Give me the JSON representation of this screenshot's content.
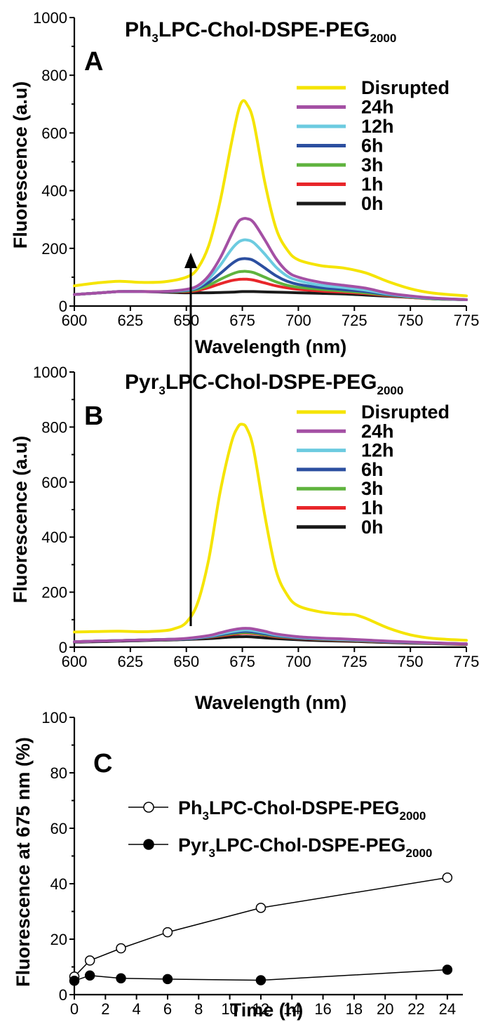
{
  "chart_data": [
    {
      "panel": "A",
      "type": "line",
      "title": "Ph3LPC-Chol-DSPE-PEG2000",
      "xlabel": "Wavelength (nm)",
      "ylabel": "Fluorescence (a.u)",
      "xlim": [
        600,
        775
      ],
      "ylim": [
        0,
        1000
      ],
      "xticks": [
        600,
        625,
        650,
        675,
        700,
        725,
        750,
        775
      ],
      "yticks": [
        0,
        200,
        400,
        600,
        800,
        1000
      ],
      "legend_position": "right",
      "series": [
        {
          "name": "Disrupted",
          "color": "#f5e400",
          "x": [
            600,
            610,
            620,
            630,
            640,
            650,
            655,
            660,
            665,
            670,
            673,
            675,
            677,
            680,
            685,
            690,
            695,
            700,
            710,
            720,
            730,
            740,
            750,
            760,
            775
          ],
          "y": [
            70,
            80,
            86,
            82,
            84,
            100,
            130,
            210,
            360,
            560,
            670,
            710,
            700,
            640,
            430,
            270,
            195,
            160,
            140,
            132,
            115,
            85,
            60,
            45,
            35
          ]
        },
        {
          "name": "24h",
          "color": "#a450a4",
          "x": [
            600,
            610,
            620,
            630,
            640,
            650,
            655,
            660,
            665,
            670,
            673,
            675,
            677,
            680,
            685,
            690,
            695,
            700,
            710,
            720,
            730,
            740,
            750,
            760,
            775
          ],
          "y": [
            40,
            45,
            50,
            50,
            50,
            58,
            70,
            105,
            165,
            245,
            290,
            302,
            303,
            290,
            230,
            165,
            120,
            100,
            82,
            72,
            62,
            45,
            35,
            28,
            22
          ]
        },
        {
          "name": "12h",
          "color": "#6ccbe0",
          "x": [
            600,
            610,
            620,
            630,
            640,
            650,
            655,
            660,
            665,
            670,
            673,
            675,
            677,
            680,
            685,
            690,
            695,
            700,
            710,
            720,
            730,
            740,
            750,
            760,
            775
          ],
          "y": [
            40,
            45,
            50,
            50,
            50,
            56,
            66,
            95,
            140,
            195,
            220,
            228,
            229,
            220,
            180,
            135,
            104,
            88,
            72,
            64,
            55,
            42,
            33,
            27,
            22
          ]
        },
        {
          "name": "6h",
          "color": "#2c4fa0",
          "x": [
            600,
            610,
            620,
            630,
            640,
            650,
            655,
            660,
            665,
            670,
            673,
            675,
            677,
            680,
            685,
            690,
            695,
            700,
            710,
            720,
            730,
            740,
            750,
            760,
            775
          ],
          "y": [
            40,
            45,
            50,
            50,
            50,
            54,
            62,
            82,
            112,
            145,
            160,
            164,
            164,
            158,
            132,
            105,
            86,
            75,
            64,
            57,
            50,
            40,
            32,
            26,
            22
          ]
        },
        {
          "name": "3h",
          "color": "#5fb33e",
          "x": [
            600,
            610,
            620,
            630,
            640,
            650,
            655,
            660,
            665,
            670,
            673,
            675,
            677,
            680,
            685,
            690,
            695,
            700,
            710,
            720,
            730,
            740,
            750,
            760,
            775
          ],
          "y": [
            40,
            45,
            50,
            50,
            50,
            52,
            58,
            72,
            92,
            110,
            118,
            120,
            120,
            116,
            100,
            84,
            72,
            65,
            58,
            52,
            46,
            38,
            31,
            25,
            22
          ]
        },
        {
          "name": "1h",
          "color": "#e8262a",
          "x": [
            600,
            610,
            620,
            630,
            640,
            650,
            655,
            660,
            665,
            670,
            673,
            675,
            677,
            680,
            685,
            690,
            695,
            700,
            710,
            720,
            730,
            740,
            750,
            760,
            775
          ],
          "y": [
            40,
            45,
            50,
            50,
            50,
            50,
            54,
            64,
            77,
            88,
            92,
            93,
            93,
            90,
            80,
            70,
            63,
            58,
            52,
            48,
            43,
            36,
            30,
            25,
            22
          ]
        },
        {
          "name": "0h",
          "color": "#1a1a1a",
          "x": [
            600,
            610,
            620,
            630,
            640,
            650,
            660,
            670,
            675,
            680,
            690,
            700,
            710,
            720,
            730,
            740,
            750,
            760,
            775
          ],
          "y": [
            40,
            45,
            50,
            50,
            48,
            46,
            46,
            48,
            50,
            50,
            48,
            46,
            44,
            42,
            38,
            34,
            30,
            26,
            22
          ]
        }
      ]
    },
    {
      "panel": "B",
      "type": "line",
      "title": "Pyr3LPC-Chol-DSPE-PEG2000",
      "xlabel": "Wavelength (nm)",
      "ylabel": "Fluorescence (a.u)",
      "xlim": [
        600,
        775
      ],
      "ylim": [
        0,
        1000
      ],
      "xticks": [
        600,
        625,
        650,
        675,
        700,
        725,
        750,
        775
      ],
      "yticks": [
        0,
        200,
        400,
        600,
        800,
        1000
      ],
      "legend_position": "right",
      "series": [
        {
          "name": "Disrupted",
          "color": "#f5e400",
          "x": [
            600,
            610,
            620,
            630,
            640,
            645,
            650,
            655,
            660,
            665,
            670,
            673,
            675,
            677,
            680,
            685,
            690,
            695,
            700,
            710,
            720,
            725,
            730,
            740,
            750,
            760,
            775
          ],
          "y": [
            55,
            57,
            58,
            56,
            60,
            68,
            90,
            160,
            320,
            560,
            740,
            800,
            810,
            795,
            720,
            480,
            280,
            190,
            150,
            128,
            120,
            118,
            105,
            70,
            45,
            32,
            25
          ]
        },
        {
          "name": "24h",
          "color": "#a450a4",
          "x": [
            600,
            620,
            640,
            650,
            660,
            665,
            670,
            675,
            678,
            680,
            685,
            690,
            700,
            710,
            720,
            730,
            740,
            760,
            775
          ],
          "y": [
            20,
            24,
            28,
            32,
            42,
            52,
            62,
            68,
            68,
            66,
            58,
            48,
            38,
            33,
            30,
            26,
            22,
            16,
            12
          ]
        },
        {
          "name": "12h",
          "color": "#6ccbe0",
          "x": [
            600,
            620,
            640,
            650,
            660,
            665,
            670,
            675,
            678,
            680,
            685,
            690,
            700,
            710,
            720,
            730,
            740,
            760,
            775
          ],
          "y": [
            20,
            24,
            28,
            31,
            40,
            48,
            56,
            62,
            62,
            60,
            53,
            45,
            36,
            31,
            28,
            25,
            21,
            15,
            12
          ]
        },
        {
          "name": "6h",
          "color": "#2c4fa0",
          "x": [
            600,
            620,
            640,
            650,
            660,
            665,
            670,
            675,
            678,
            680,
            685,
            690,
            700,
            710,
            720,
            730,
            740,
            760,
            775
          ],
          "y": [
            20,
            24,
            28,
            30,
            38,
            45,
            52,
            57,
            57,
            55,
            49,
            42,
            34,
            30,
            27,
            24,
            20,
            15,
            12
          ]
        },
        {
          "name": "3h",
          "color": "#5fb33e",
          "x": [
            600,
            620,
            640,
            650,
            660,
            665,
            670,
            675,
            678,
            680,
            685,
            690,
            700,
            710,
            720,
            730,
            740,
            760,
            775
          ],
          "y": [
            20,
            24,
            28,
            30,
            37,
            43,
            49,
            53,
            53,
            52,
            46,
            40,
            33,
            29,
            26,
            23,
            20,
            15,
            12
          ]
        },
        {
          "name": "1h",
          "color": "#e8262a",
          "x": [
            600,
            620,
            640,
            650,
            660,
            665,
            670,
            675,
            678,
            680,
            685,
            690,
            700,
            710,
            720,
            730,
            740,
            760,
            775
          ],
          "y": [
            20,
            24,
            28,
            30,
            36,
            41,
            46,
            50,
            50,
            49,
            44,
            38,
            32,
            28,
            25,
            22,
            19,
            14,
            11
          ]
        },
        {
          "name": "0h",
          "color": "#1a1a1a",
          "x": [
            600,
            620,
            640,
            650,
            660,
            665,
            670,
            675,
            678,
            680,
            685,
            690,
            700,
            710,
            720,
            730,
            740,
            760,
            775
          ],
          "y": [
            18,
            22,
            26,
            28,
            31,
            34,
            37,
            38,
            38,
            37,
            34,
            31,
            27,
            24,
            22,
            20,
            17,
            13,
            10
          ]
        }
      ],
      "annotation": "up-arrow"
    },
    {
      "panel": "C",
      "type": "scatter",
      "xlabel": "Time (h)",
      "ylabel": "Fluorescence at 675 nm (%)",
      "xlim": [
        0,
        25
      ],
      "ylim": [
        0,
        100
      ],
      "xticks": [
        0,
        2,
        4,
        6,
        8,
        10,
        12,
        14,
        16,
        18,
        20,
        22,
        24
      ],
      "yticks": [
        0,
        20,
        40,
        60,
        80,
        100
      ],
      "legend_position": "top-right",
      "series": [
        {
          "name": "Ph3LPC-Chol-DSPE-PEG2000",
          "marker": "open-circle",
          "x": [
            0,
            1,
            3,
            6,
            12,
            24
          ],
          "y": [
            6.5,
            12.3,
            16.7,
            22.5,
            31.3,
            42.2
          ]
        },
        {
          "name": "Pyr3LPC-Chol-DSPE-PEG2000",
          "marker": "filled-circle",
          "x": [
            0,
            1,
            3,
            6,
            12,
            24
          ],
          "y": [
            5.0,
            6.9,
            5.9,
            5.6,
            5.2,
            9.0
          ]
        }
      ]
    }
  ]
}
